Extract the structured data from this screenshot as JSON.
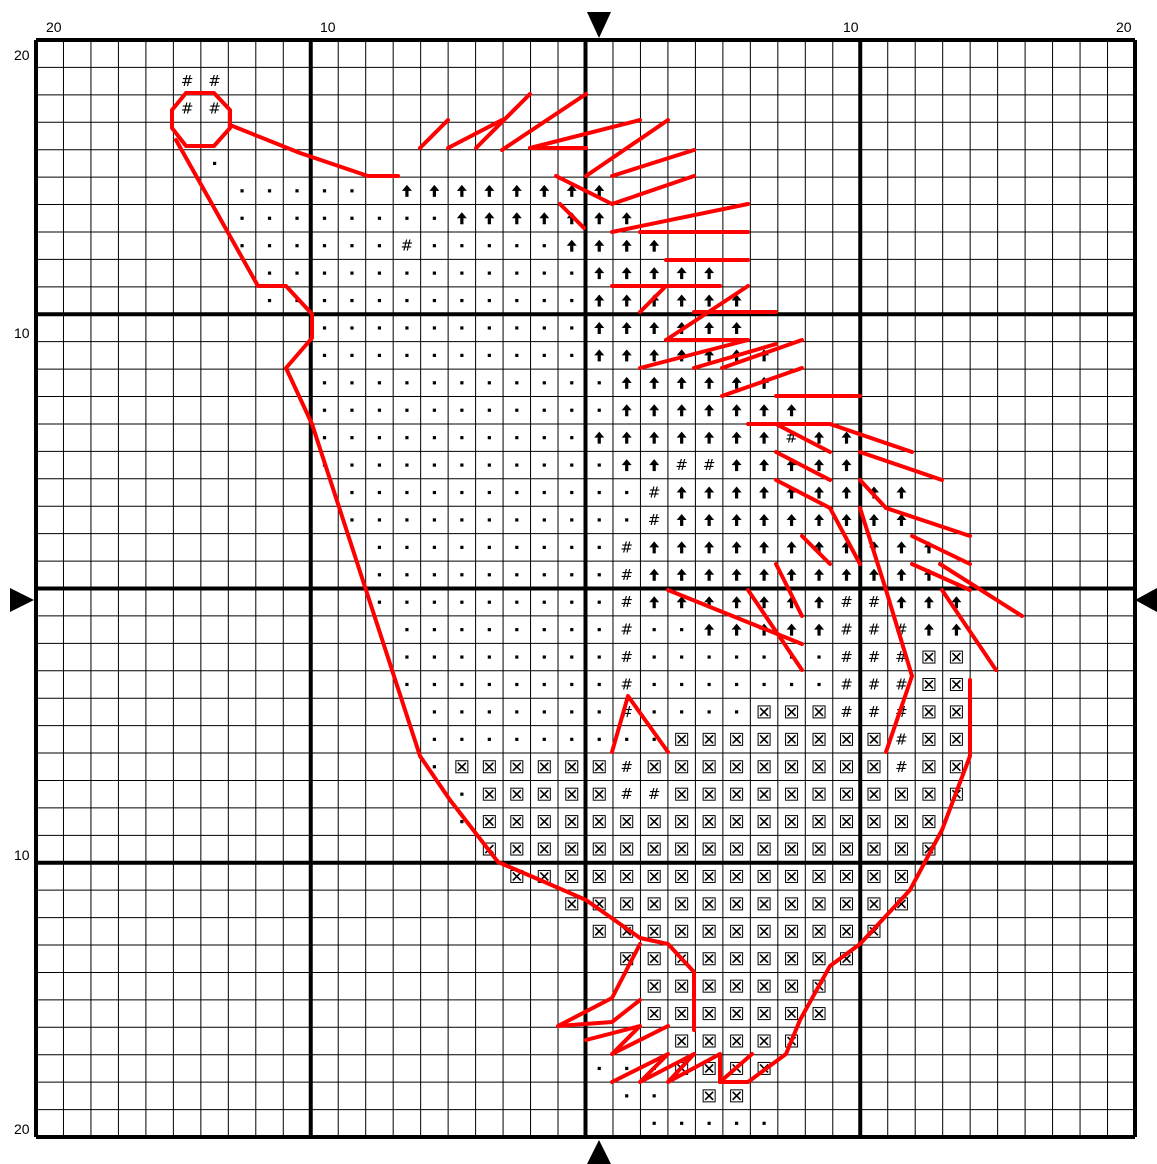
{
  "pattern": {
    "grid_cells": 40,
    "minor_every": 1,
    "major_every": 10,
    "colors": {
      "grid_minor": "#000000",
      "grid_major": "#000000",
      "backstitch": "#ff0000",
      "background": "#ffffff"
    },
    "symbols": {
      "dot": "·",
      "hash": "#",
      "arrow": "⬆",
      "cross": "⌧"
    }
  },
  "labels": {
    "top": [
      "20",
      "10",
      "10",
      "20"
    ],
    "left": [
      "20",
      "10",
      "10",
      "20"
    ]
  },
  "center_markers": {
    "top_icon": "triangle-down",
    "bottom_icon": "triangle-up",
    "left_icon": "triangle-right",
    "right_icon": "triangle-left"
  }
}
